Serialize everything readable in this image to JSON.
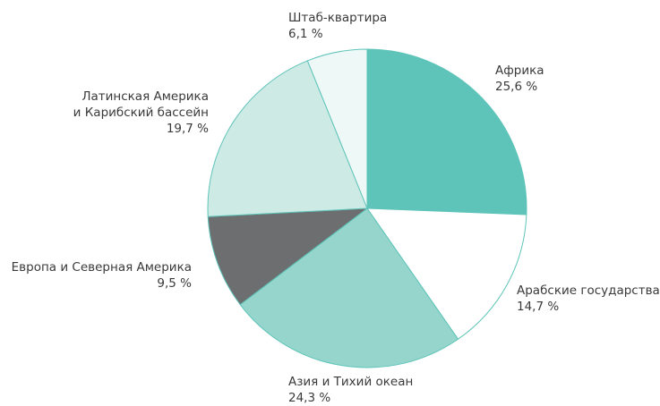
{
  "chart_data": {
    "type": "pie",
    "categories": [
      "Африка",
      "Арабские государства",
      "Азия и Тихий океан",
      "Европа и Северная Америка",
      "Латинская Америка\nи Карибский бассейн",
      "Штаб-квартира"
    ],
    "values": [
      25.6,
      14.7,
      24.3,
      9.5,
      19.7,
      6.1
    ],
    "value_labels": [
      "25,6 %",
      "14,7 %",
      "24,3 %",
      "9,5 %",
      "19,7 %",
      "6,1 %"
    ],
    "colors": [
      "#5ec4b9",
      "#ffffff",
      "#95d5cc",
      "#6d6e70",
      "#cdeae5",
      "#eef8f6"
    ]
  }
}
